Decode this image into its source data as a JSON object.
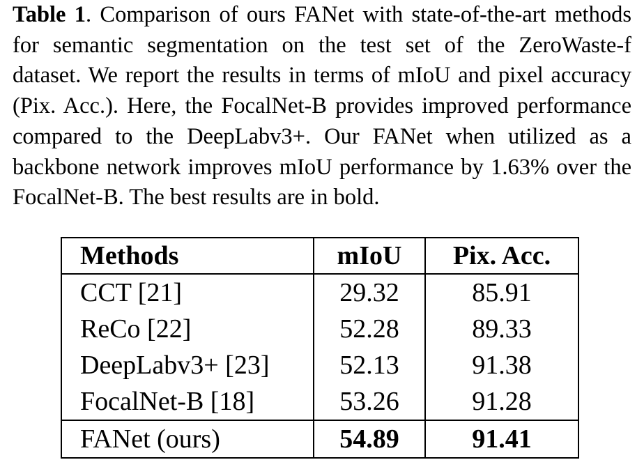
{
  "caption": {
    "label": "Table 1",
    "text": ". Comparison of ours FANet with state-of-the-art methods for semantic segmentation on the test set of the ZeroWaste-f dataset. We report the results in terms of mIoU and pixel accuracy (Pix. Acc.). Here, the FocalNet-B provides improved performance compared to the DeepLabv3+. Our FANet when utilized as a backbone network improves mIoU performance by 1.63% over the FocalNet-B. The best results are in bold."
  },
  "table": {
    "header": [
      "Methods",
      "mIoU",
      "Pix. Acc."
    ],
    "rows": [
      [
        "CCT [21]",
        "29.32",
        "85.91"
      ],
      [
        "ReCo [22]",
        "52.28",
        "89.33"
      ],
      [
        "DeepLabv3+ [23]",
        "52.13",
        "91.38"
      ],
      [
        "FocalNet-B [18]",
        "53.26",
        "91.28"
      ],
      [
        "FANet (ours)",
        "54.89",
        "91.41"
      ]
    ]
  }
}
